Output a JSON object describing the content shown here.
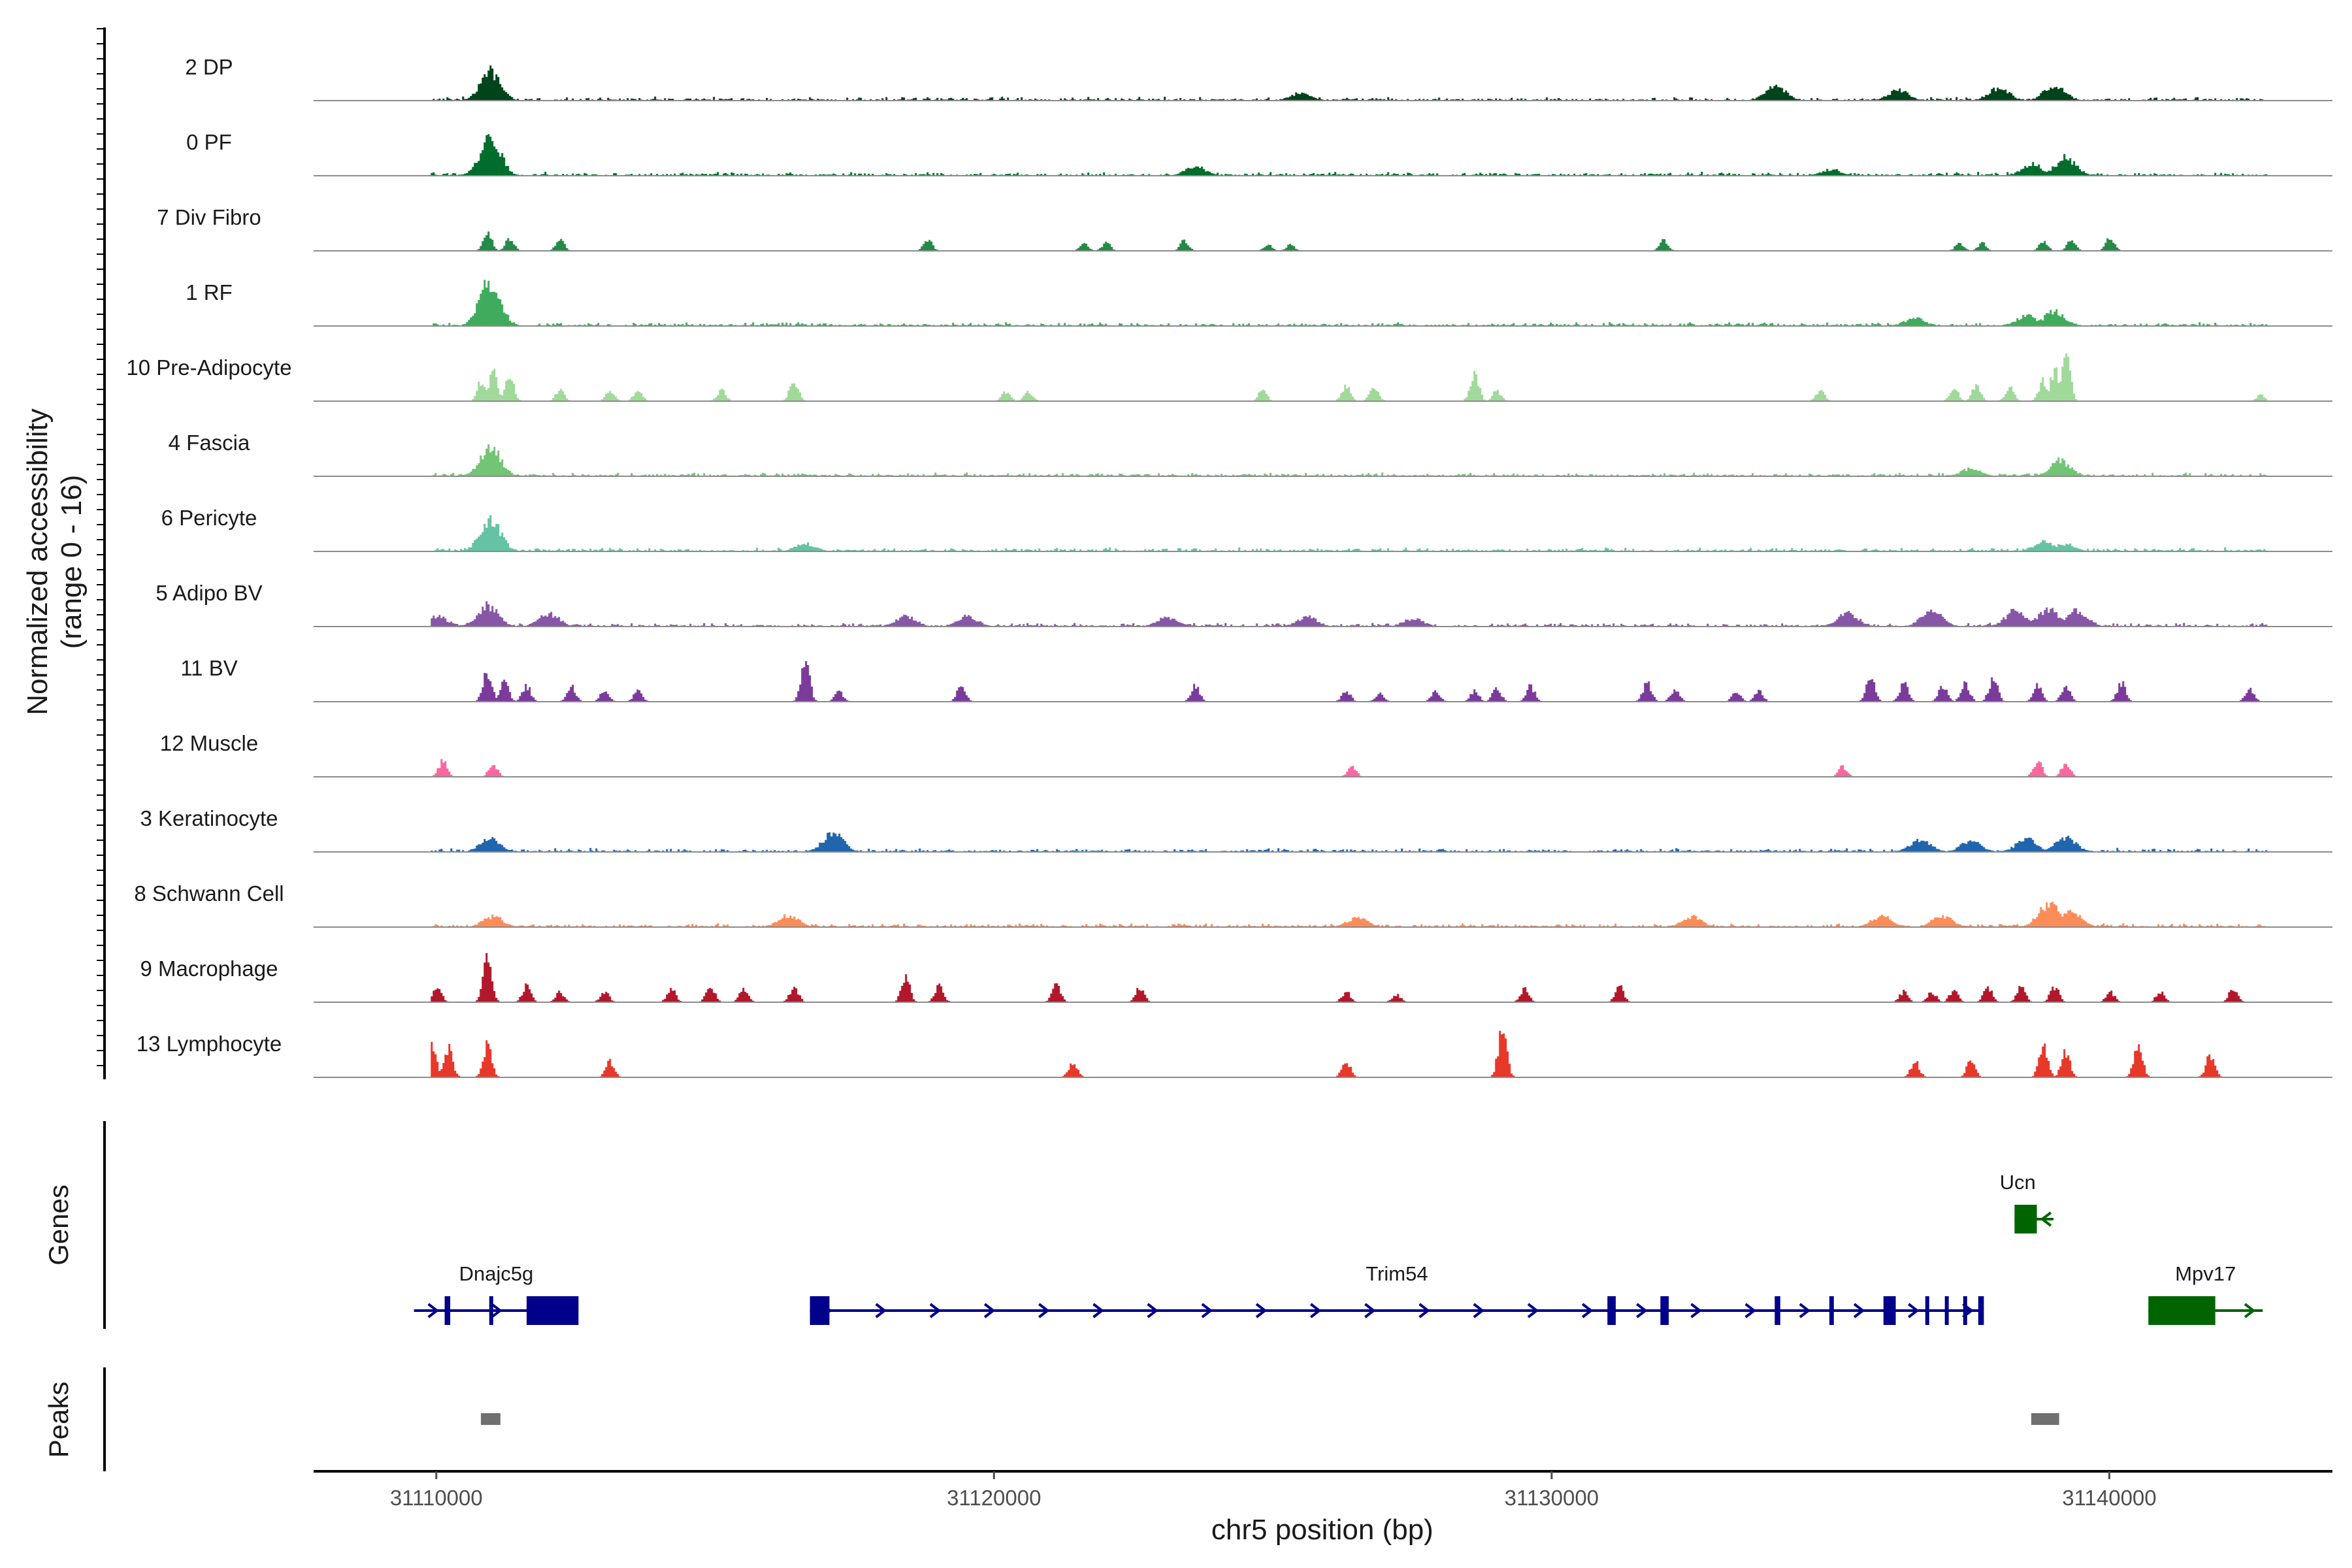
{
  "chart_data": {
    "type": "area",
    "title": "",
    "ylabel": "Normalized accessibility",
    "ylabel_range": "(range 0 - 16)",
    "ylim": [
      0,
      16
    ],
    "xlabel": "chr5 position (bp)",
    "xlim": [
      31107800,
      31144000
    ],
    "x_ticks": [
      31110000,
      31120000,
      31130000,
      31140000
    ],
    "x_tick_labels": [
      "31110000",
      "31120000",
      "31130000",
      "31140000"
    ],
    "tracks": [
      {
        "label": "2 DP",
        "color": "#00441b",
        "style": "dense",
        "peaks": [
          [
            31110950,
            0.55
          ],
          [
            31125500,
            0.15
          ],
          [
            31134000,
            0.28
          ],
          [
            31136200,
            0.2
          ],
          [
            31138000,
            0.25
          ],
          [
            31139000,
            0.3
          ]
        ]
      },
      {
        "label": "0 PF",
        "color": "#006d2c",
        "style": "dense",
        "peaks": [
          [
            31110950,
            0.72
          ],
          [
            31123600,
            0.18
          ],
          [
            31135000,
            0.12
          ],
          [
            31138600,
            0.22
          ],
          [
            31139200,
            0.35
          ]
        ]
      },
      {
        "label": "7 Div Fibro",
        "color": "#238b45",
        "style": "sparse",
        "peaks": [
          [
            31110900,
            0.35
          ],
          [
            31111300,
            0.25
          ],
          [
            31112200,
            0.22
          ],
          [
            31118800,
            0.2
          ],
          [
            31121600,
            0.15
          ],
          [
            31122000,
            0.15
          ],
          [
            31123400,
            0.2
          ],
          [
            31124900,
            0.12
          ],
          [
            31125300,
            0.12
          ],
          [
            31132000,
            0.2
          ],
          [
            31137300,
            0.15
          ],
          [
            31137700,
            0.15
          ],
          [
            31138800,
            0.18
          ],
          [
            31139300,
            0.2
          ],
          [
            31140000,
            0.25
          ]
        ]
      },
      {
        "label": "1 RF",
        "color": "#41ab5d",
        "style": "dense",
        "peaks": [
          [
            31110950,
            0.85
          ],
          [
            31136500,
            0.15
          ],
          [
            31138500,
            0.2
          ],
          [
            31139000,
            0.28
          ]
        ]
      },
      {
        "label": "10 Pre-Adipocyte",
        "color": "#a1d99b",
        "style": "sparse",
        "peaks": [
          [
            31110800,
            0.4
          ],
          [
            31111000,
            0.55
          ],
          [
            31111300,
            0.45
          ],
          [
            31112200,
            0.2
          ],
          [
            31113100,
            0.2
          ],
          [
            31113600,
            0.2
          ],
          [
            31115100,
            0.2
          ],
          [
            31116400,
            0.4
          ],
          [
            31120200,
            0.18
          ],
          [
            31120600,
            0.18
          ],
          [
            31124800,
            0.2
          ],
          [
            31126300,
            0.3
          ],
          [
            31126800,
            0.3
          ],
          [
            31128600,
            0.5
          ],
          [
            31129000,
            0.2
          ],
          [
            31134800,
            0.2
          ],
          [
            31137200,
            0.25
          ],
          [
            31137600,
            0.3
          ],
          [
            31138200,
            0.25
          ],
          [
            31138800,
            0.4
          ],
          [
            31139000,
            0.6
          ],
          [
            31139200,
            0.95
          ],
          [
            31142700,
            0.12
          ]
        ]
      },
      {
        "label": "4 Fascia",
        "color": "#74c476",
        "style": "dense",
        "peaks": [
          [
            31110950,
            0.55
          ],
          [
            31137500,
            0.15
          ],
          [
            31139100,
            0.3
          ]
        ]
      },
      {
        "label": "6 Pericyte",
        "color": "#66c2a4",
        "style": "dense",
        "peaks": [
          [
            31110950,
            0.6
          ],
          [
            31116600,
            0.15
          ],
          [
            31138800,
            0.18
          ],
          [
            31139200,
            0.15
          ]
        ]
      },
      {
        "label": "5 Adipo BV",
        "color": "#8856a7",
        "style": "dense",
        "peaks": [
          [
            31110000,
            0.2
          ],
          [
            31110900,
            0.4
          ],
          [
            31112000,
            0.25
          ],
          [
            31118400,
            0.2
          ],
          [
            31119500,
            0.2
          ],
          [
            31123100,
            0.18
          ],
          [
            31125600,
            0.18
          ],
          [
            31127500,
            0.15
          ],
          [
            31135300,
            0.25
          ],
          [
            31136800,
            0.3
          ],
          [
            31138300,
            0.3
          ],
          [
            31138900,
            0.35
          ],
          [
            31139400,
            0.3
          ]
        ]
      },
      {
        "label": "11 BV",
        "color": "#7a3b9a",
        "style": "sparse",
        "peaks": [
          [
            31110900,
            0.6
          ],
          [
            31111200,
            0.4
          ],
          [
            31111600,
            0.3
          ],
          [
            31112400,
            0.3
          ],
          [
            31113000,
            0.2
          ],
          [
            31113600,
            0.2
          ],
          [
            31116600,
            0.75
          ],
          [
            31117200,
            0.2
          ],
          [
            31119400,
            0.3
          ],
          [
            31123600,
            0.3
          ],
          [
            31126300,
            0.2
          ],
          [
            31126900,
            0.15
          ],
          [
            31127900,
            0.2
          ],
          [
            31128600,
            0.2
          ],
          [
            31129000,
            0.25
          ],
          [
            31129600,
            0.3
          ],
          [
            31131700,
            0.35
          ],
          [
            31132200,
            0.25
          ],
          [
            31133300,
            0.2
          ],
          [
            31133700,
            0.2
          ],
          [
            31135700,
            0.45
          ],
          [
            31136300,
            0.35
          ],
          [
            31137000,
            0.3
          ],
          [
            31137400,
            0.35
          ],
          [
            31137900,
            0.45
          ],
          [
            31138700,
            0.3
          ],
          [
            31139200,
            0.3
          ],
          [
            31140200,
            0.35
          ],
          [
            31142500,
            0.25
          ]
        ]
      },
      {
        "label": "12 Muscle",
        "color": "#f768a1",
        "style": "sparse",
        "peaks": [
          [
            31110100,
            0.3
          ],
          [
            31111000,
            0.25
          ],
          [
            31126400,
            0.2
          ],
          [
            31135200,
            0.2
          ],
          [
            31138700,
            0.3
          ],
          [
            31139200,
            0.28
          ]
        ]
      },
      {
        "label": "3 Keratinocyte",
        "color": "#2166ac",
        "style": "dense",
        "peaks": [
          [
            31110950,
            0.25
          ],
          [
            31117100,
            0.35
          ],
          [
            31136600,
            0.25
          ],
          [
            31137500,
            0.2
          ],
          [
            31138500,
            0.25
          ],
          [
            31139200,
            0.28
          ]
        ]
      },
      {
        "label": "8 Schwann Cell",
        "color": "#fc8d59",
        "style": "dense",
        "peaks": [
          [
            31111000,
            0.2
          ],
          [
            31116300,
            0.22
          ],
          [
            31126500,
            0.18
          ],
          [
            31132500,
            0.2
          ],
          [
            31135900,
            0.22
          ],
          [
            31137000,
            0.22
          ],
          [
            31138900,
            0.45
          ],
          [
            31139300,
            0.3
          ]
        ]
      },
      {
        "label": "9 Macrophage",
        "color": "#b2182b",
        "style": "sparse",
        "peaks": [
          [
            31110000,
            0.3
          ],
          [
            31110900,
            0.9
          ],
          [
            31111600,
            0.3
          ],
          [
            31112200,
            0.2
          ],
          [
            31113000,
            0.2
          ],
          [
            31114200,
            0.25
          ],
          [
            31114900,
            0.3
          ],
          [
            31115500,
            0.25
          ],
          [
            31116400,
            0.3
          ],
          [
            31118400,
            0.45
          ],
          [
            31119000,
            0.3
          ],
          [
            31121100,
            0.35
          ],
          [
            31122600,
            0.3
          ],
          [
            31126300,
            0.2
          ],
          [
            31127200,
            0.15
          ],
          [
            31129500,
            0.25
          ],
          [
            31131200,
            0.3
          ],
          [
            31136300,
            0.2
          ],
          [
            31136800,
            0.2
          ],
          [
            31137200,
            0.25
          ],
          [
            31137800,
            0.3
          ],
          [
            31138400,
            0.3
          ],
          [
            31139000,
            0.3
          ],
          [
            31140000,
            0.2
          ],
          [
            31140900,
            0.2
          ],
          [
            31142200,
            0.25
          ]
        ]
      },
      {
        "label": "13 Lymphocyte",
        "color": "#e7382a",
        "style": "sparse",
        "peaks": [
          [
            31109900,
            0.65
          ],
          [
            31110200,
            0.55
          ],
          [
            31110900,
            0.6
          ],
          [
            31113100,
            0.3
          ],
          [
            31121400,
            0.3
          ],
          [
            31126300,
            0.3
          ],
          [
            31129100,
            0.9
          ],
          [
            31136500,
            0.3
          ],
          [
            31137500,
            0.3
          ],
          [
            31138800,
            0.6
          ],
          [
            31139200,
            0.5
          ],
          [
            31140500,
            0.6
          ],
          [
            31141800,
            0.45
          ]
        ]
      }
    ],
    "genes": [
      {
        "name": "Ucn",
        "start": 31138300,
        "end": 31139000,
        "strand": "-",
        "color": "#006400",
        "row": 0,
        "exons": [
          [
            31138300,
            31138700
          ]
        ]
      },
      {
        "name": "Dnajc5g",
        "start": 31109600,
        "end": 31112550,
        "strand": "+",
        "color": "#00008b",
        "row": 1,
        "exons": [
          [
            31110150,
            31110250
          ],
          [
            31110950,
            31111000
          ],
          [
            31111620,
            31112550
          ]
        ]
      },
      {
        "name": "Trim54",
        "start": 31116700,
        "end": 31137750,
        "strand": "+",
        "color": "#00008b",
        "row": 1,
        "exons": [
          [
            31116700,
            31117050
          ],
          [
            31131000,
            31131150
          ],
          [
            31131950,
            31132100
          ],
          [
            31134000,
            31134100
          ],
          [
            31134980,
            31135060
          ],
          [
            31135950,
            31136170
          ],
          [
            31136700,
            31136770
          ],
          [
            31137050,
            31137120
          ],
          [
            31137380,
            31137440
          ],
          [
            31137650,
            31137750
          ]
        ]
      },
      {
        "name": "Mpv17",
        "start": 31140700,
        "end": 31142750,
        "strand": "+",
        "color": "#006400",
        "row": 1,
        "exons": [
          [
            31140700,
            31141900
          ]
        ]
      }
    ],
    "peaks_label": "Peaks",
    "genes_label": "Genes",
    "called_peaks": [
      [
        31110800,
        31111150
      ],
      [
        31138600,
        31139100
      ]
    ]
  }
}
